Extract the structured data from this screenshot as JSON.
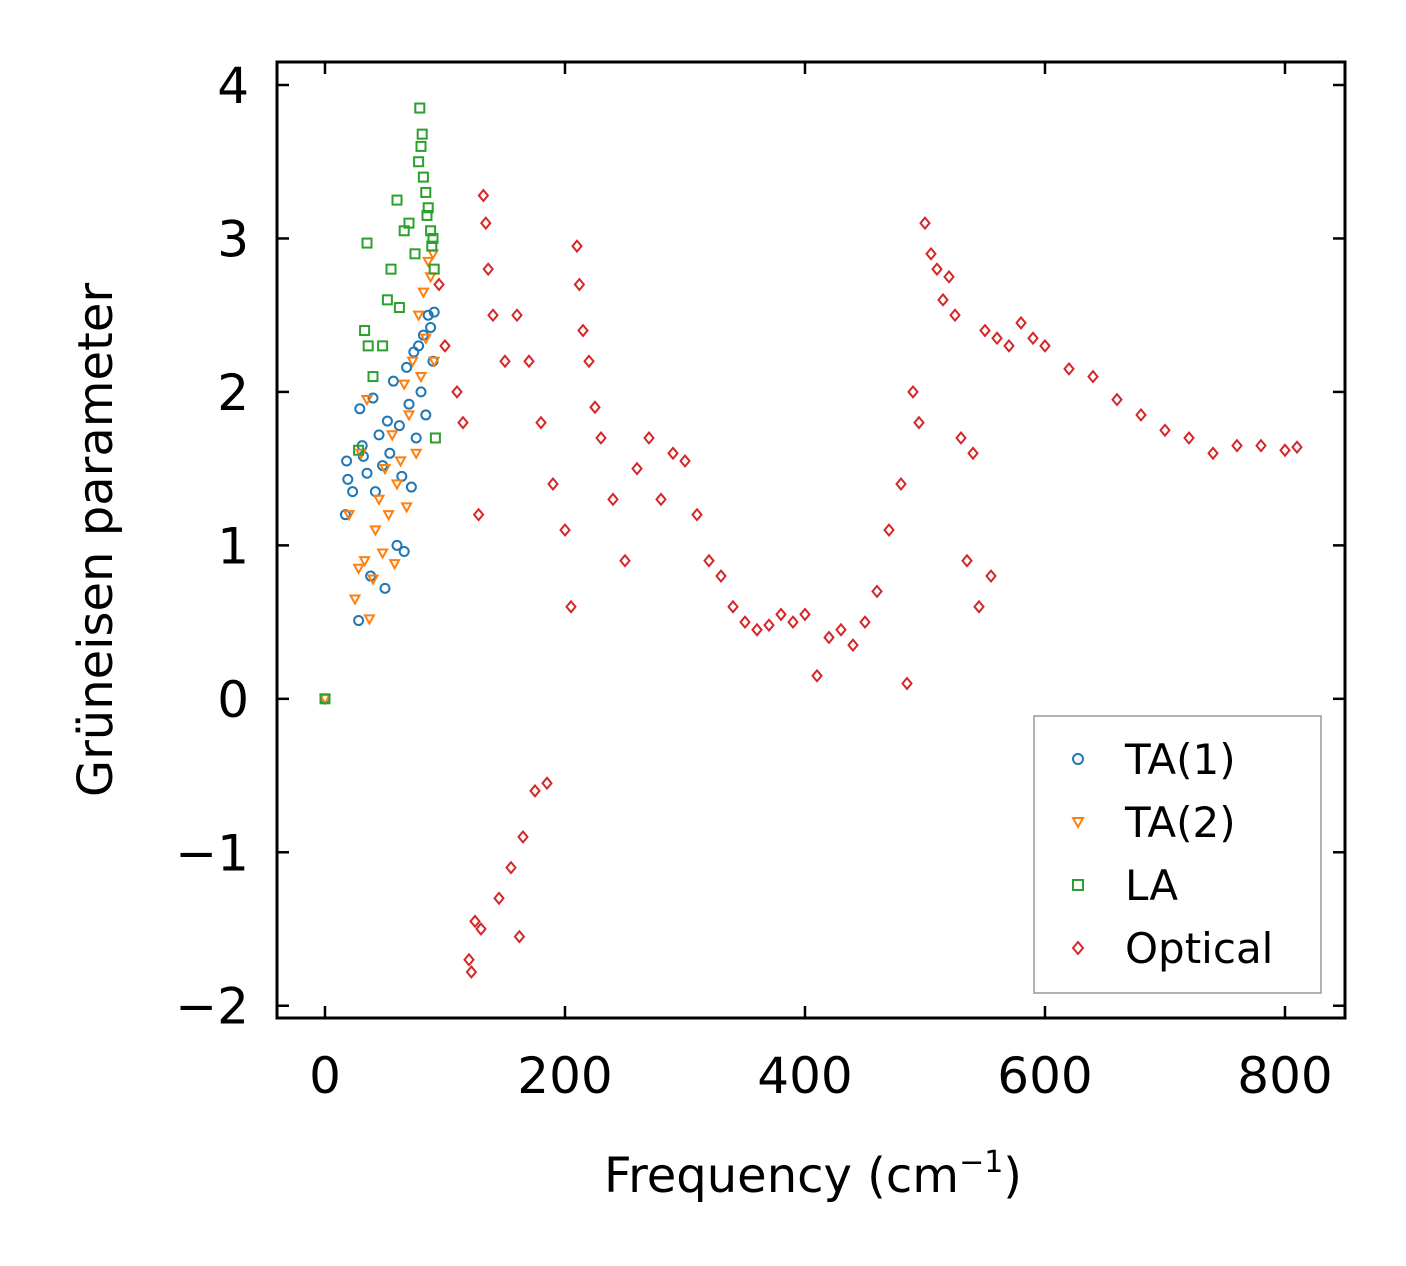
{
  "chart_data": {
    "type": "scatter",
    "title": "",
    "xlabel": "Frequency (cm",
    "xlabel_sup": "−1",
    "xlabel_tail": ")",
    "ylabel": "Grüneisen parameter",
    "xlim": [
      -40,
      850
    ],
    "ylim": [
      -2.08,
      4.15
    ],
    "xticks": [
      0,
      200,
      400,
      600,
      800
    ],
    "xtick_labels": [
      "0",
      "200",
      "400",
      "600",
      "800"
    ],
    "yticks": [
      -2,
      -1,
      0,
      1,
      2,
      3,
      4
    ],
    "ytick_labels": [
      "−2",
      "−1",
      "0",
      "1",
      "2",
      "3",
      "4"
    ],
    "grid": false,
    "legend_position": "bottom-right",
    "series": [
      {
        "name": "TA(1)",
        "marker": "circle",
        "color": "#1f77b4",
        "points": [
          [
            0,
            0
          ],
          [
            17,
            1.2
          ],
          [
            18,
            1.55
          ],
          [
            19,
            1.43
          ],
          [
            23,
            1.35
          ],
          [
            28,
            0.51
          ],
          [
            29,
            1.89
          ],
          [
            31,
            1.65
          ],
          [
            32,
            1.58
          ],
          [
            35,
            1.47
          ],
          [
            38,
            0.8
          ],
          [
            40,
            1.96
          ],
          [
            42,
            1.35
          ],
          [
            45,
            1.72
          ],
          [
            48,
            1.52
          ],
          [
            50,
            0.72
          ],
          [
            52,
            1.81
          ],
          [
            54,
            1.6
          ],
          [
            57,
            2.07
          ],
          [
            60,
            1.0
          ],
          [
            62,
            1.78
          ],
          [
            64,
            1.45
          ],
          [
            66,
            0.96
          ],
          [
            68,
            2.16
          ],
          [
            70,
            1.92
          ],
          [
            72,
            1.38
          ],
          [
            74,
            2.26
          ],
          [
            76,
            1.7
          ],
          [
            78,
            2.3
          ],
          [
            80,
            2.0
          ],
          [
            82,
            2.37
          ],
          [
            84,
            1.85
          ],
          [
            86,
            2.5
          ],
          [
            88,
            2.42
          ],
          [
            90,
            2.2
          ],
          [
            91,
            2.52
          ]
        ]
      },
      {
        "name": "TA(2)",
        "marker": "triangle-down",
        "color": "#ff7f0e",
        "points": [
          [
            0,
            0
          ],
          [
            20,
            1.2
          ],
          [
            25,
            0.65
          ],
          [
            28,
            0.85
          ],
          [
            30,
            1.6
          ],
          [
            33,
            0.9
          ],
          [
            35,
            1.95
          ],
          [
            37,
            0.52
          ],
          [
            40,
            0.78
          ],
          [
            42,
            1.1
          ],
          [
            45,
            1.3
          ],
          [
            48,
            0.95
          ],
          [
            50,
            1.5
          ],
          [
            53,
            1.2
          ],
          [
            56,
            1.72
          ],
          [
            58,
            0.88
          ],
          [
            60,
            1.4
          ],
          [
            63,
            1.55
          ],
          [
            66,
            2.05
          ],
          [
            68,
            1.25
          ],
          [
            70,
            1.85
          ],
          [
            73,
            2.2
          ],
          [
            76,
            1.6
          ],
          [
            78,
            2.5
          ],
          [
            80,
            2.1
          ],
          [
            82,
            2.65
          ],
          [
            84,
            2.35
          ],
          [
            86,
            2.85
          ],
          [
            88,
            2.75
          ],
          [
            90,
            2.9
          ],
          [
            91,
            2.2
          ]
        ]
      },
      {
        "name": "LA",
        "marker": "square",
        "color": "#2ca02c",
        "points": [
          [
            0,
            0
          ],
          [
            28,
            1.62
          ],
          [
            33,
            2.4
          ],
          [
            35,
            2.97
          ],
          [
            36,
            2.3
          ],
          [
            40,
            2.1
          ],
          [
            48,
            2.3
          ],
          [
            52,
            2.6
          ],
          [
            55,
            2.8
          ],
          [
            60,
            3.25
          ],
          [
            62,
            2.55
          ],
          [
            66,
            3.05
          ],
          [
            70,
            3.1
          ],
          [
            75,
            2.9
          ],
          [
            78,
            3.5
          ],
          [
            79,
            3.85
          ],
          [
            80,
            3.6
          ],
          [
            81,
            3.68
          ],
          [
            82,
            3.4
          ],
          [
            84,
            3.3
          ],
          [
            85,
            3.15
          ],
          [
            86,
            3.2
          ],
          [
            88,
            3.05
          ],
          [
            89,
            2.95
          ],
          [
            90,
            3.0
          ],
          [
            91,
            2.8
          ],
          [
            92,
            1.7
          ]
        ]
      },
      {
        "name": "Optical",
        "marker": "diamond",
        "color": "#d62728",
        "points": [
          [
            95,
            2.7
          ],
          [
            100,
            2.3
          ],
          [
            110,
            2.0
          ],
          [
            115,
            1.8
          ],
          [
            120,
            -1.7
          ],
          [
            122,
            -1.78
          ],
          [
            125,
            -1.45
          ],
          [
            128,
            1.2
          ],
          [
            130,
            -1.5
          ],
          [
            132,
            3.28
          ],
          [
            134,
            3.1
          ],
          [
            136,
            2.8
          ],
          [
            140,
            2.5
          ],
          [
            145,
            -1.3
          ],
          [
            150,
            2.2
          ],
          [
            155,
            -1.1
          ],
          [
            160,
            2.5
          ],
          [
            162,
            -1.55
          ],
          [
            165,
            -0.9
          ],
          [
            170,
            2.2
          ],
          [
            175,
            -0.6
          ],
          [
            180,
            1.8
          ],
          [
            185,
            -0.55
          ],
          [
            190,
            1.4
          ],
          [
            200,
            1.1
          ],
          [
            205,
            0.6
          ],
          [
            210,
            2.95
          ],
          [
            212,
            2.7
          ],
          [
            215,
            2.4
          ],
          [
            220,
            2.2
          ],
          [
            225,
            1.9
          ],
          [
            230,
            1.7
          ],
          [
            240,
            1.3
          ],
          [
            250,
            0.9
          ],
          [
            260,
            1.5
          ],
          [
            270,
            1.7
          ],
          [
            280,
            1.3
          ],
          [
            290,
            1.6
          ],
          [
            300,
            1.55
          ],
          [
            310,
            1.2
          ],
          [
            320,
            0.9
          ],
          [
            330,
            0.8
          ],
          [
            340,
            0.6
          ],
          [
            350,
            0.5
          ],
          [
            360,
            0.45
          ],
          [
            370,
            0.48
          ],
          [
            380,
            0.55
          ],
          [
            390,
            0.5
          ],
          [
            400,
            0.55
          ],
          [
            410,
            0.15
          ],
          [
            420,
            0.4
          ],
          [
            430,
            0.45
          ],
          [
            440,
            0.35
          ],
          [
            450,
            0.5
          ],
          [
            460,
            0.7
          ],
          [
            470,
            1.1
          ],
          [
            480,
            1.4
          ],
          [
            485,
            0.1
          ],
          [
            490,
            2.0
          ],
          [
            495,
            1.8
          ],
          [
            500,
            3.1
          ],
          [
            505,
            2.9
          ],
          [
            510,
            2.8
          ],
          [
            515,
            2.6
          ],
          [
            520,
            2.75
          ],
          [
            525,
            2.5
          ],
          [
            530,
            1.7
          ],
          [
            535,
            0.9
          ],
          [
            540,
            1.6
          ],
          [
            545,
            0.6
          ],
          [
            550,
            2.4
          ],
          [
            555,
            0.8
          ],
          [
            560,
            2.35
          ],
          [
            570,
            2.3
          ],
          [
            580,
            2.45
          ],
          [
            590,
            2.35
          ],
          [
            600,
            2.3
          ],
          [
            620,
            2.15
          ],
          [
            640,
            2.1
          ],
          [
            660,
            1.95
          ],
          [
            680,
            1.85
          ],
          [
            700,
            1.75
          ],
          [
            720,
            1.7
          ],
          [
            740,
            1.6
          ],
          [
            760,
            1.65
          ],
          [
            780,
            1.65
          ],
          [
            800,
            1.62
          ],
          [
            810,
            1.64
          ]
        ]
      }
    ]
  }
}
